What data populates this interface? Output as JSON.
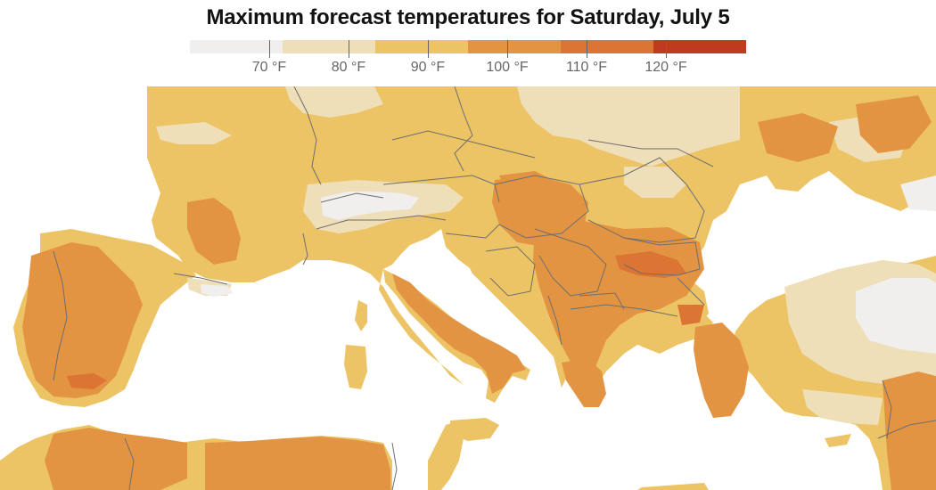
{
  "title": "Maximum forecast temperatures for Saturday, July 5",
  "legend": {
    "bins": [
      {
        "color": "#f0efed"
      },
      {
        "color": "#efdfb9"
      },
      {
        "color": "#ecc466"
      },
      {
        "color": "#e39443"
      },
      {
        "color": "#dc7433"
      },
      {
        "color": "#bf3b1e"
      }
    ],
    "labels": [
      "70 °F",
      "80 °F",
      "90 °F",
      "100 °F",
      "110 °F",
      "120 °F"
    ]
  },
  "map_colors": {
    "sea": "#ffffff",
    "cool": "#f0efed",
    "warm": "#efdfb9",
    "hot": "#ecc466",
    "very_hot": "#e39443",
    "extreme": "#dc7433",
    "border": "#6e6e6e"
  }
}
